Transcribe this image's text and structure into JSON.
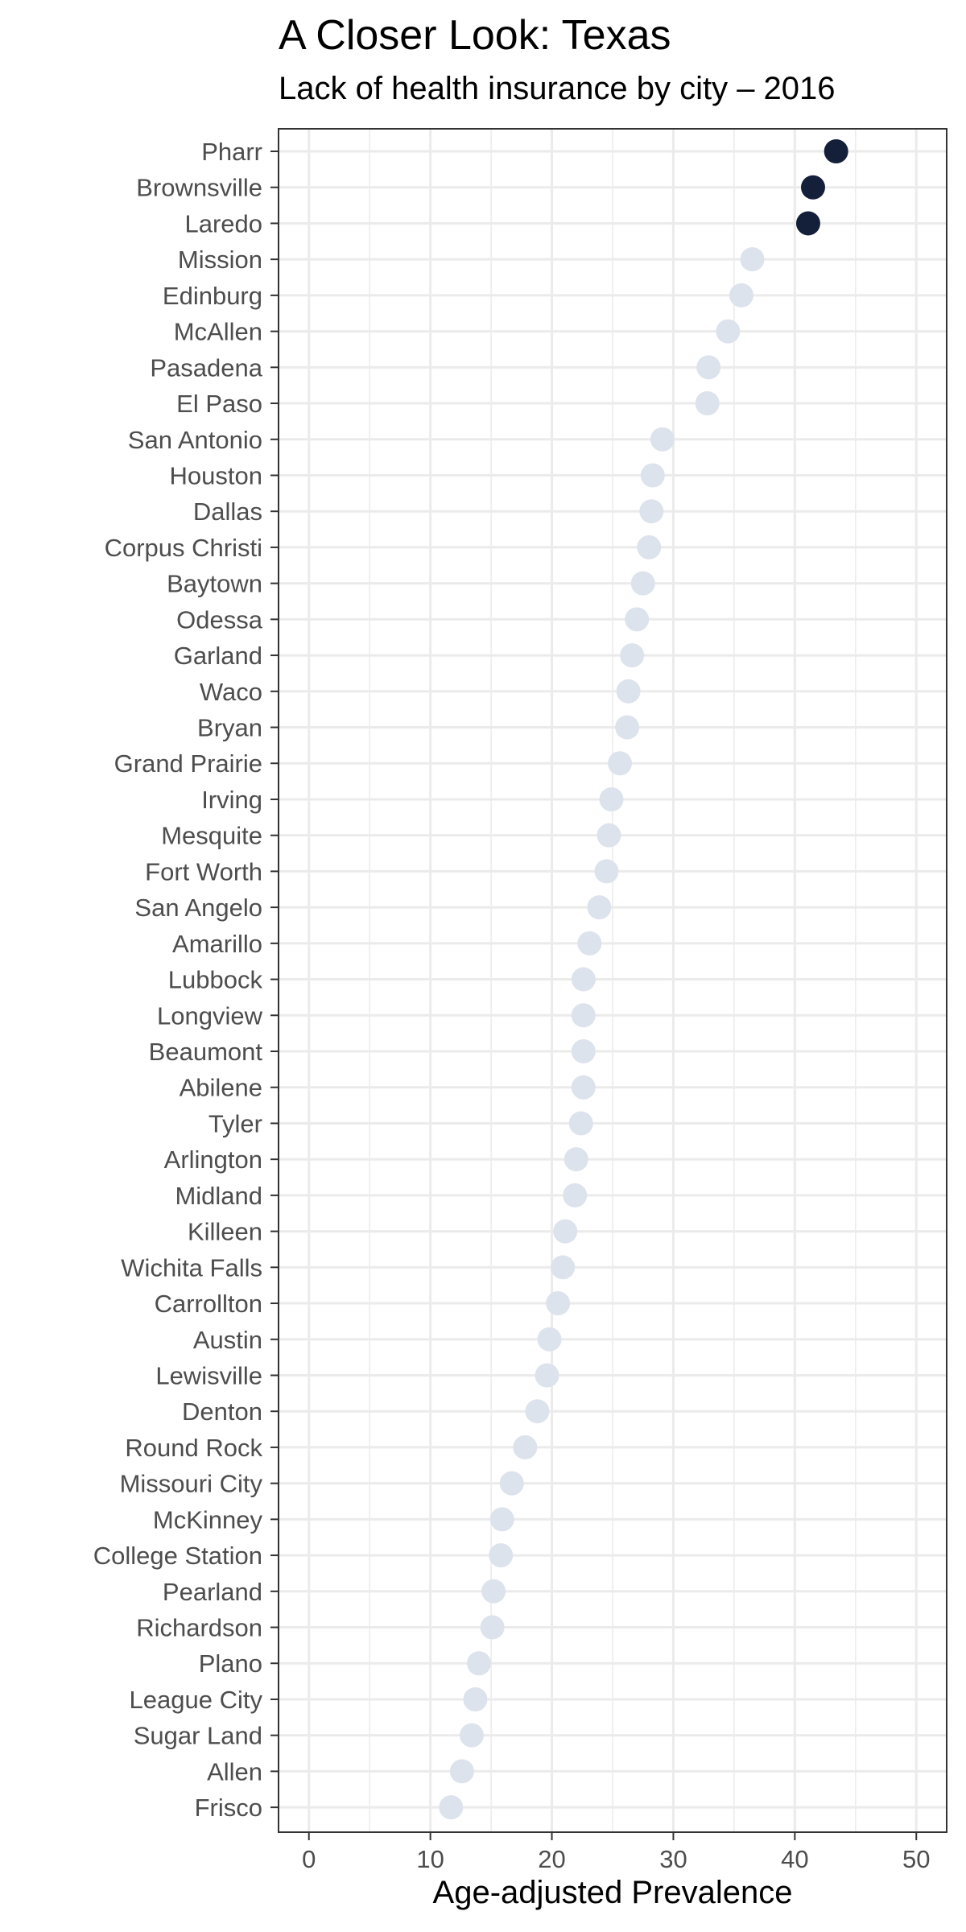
{
  "chart_data": {
    "type": "scatter",
    "title": "A Closer Look: Texas",
    "subtitle": "Lack of health insurance by city – 2016",
    "xlabel": "Age-adjusted Prevalence",
    "ylabel": "",
    "xlim": [
      -2.5,
      52.5
    ],
    "xticks": [
      0,
      10,
      20,
      30,
      40,
      50
    ],
    "grid": true,
    "legend": "none",
    "colors": {
      "highlight": "#14203a",
      "default": "#dde3ec",
      "grid": "#ebebeb",
      "panel_border": "#333333"
    },
    "points": [
      {
        "city": "Pharr",
        "value": 43.4,
        "highlight": true
      },
      {
        "city": "Brownsville",
        "value": 41.5,
        "highlight": true
      },
      {
        "city": "Laredo",
        "value": 41.1,
        "highlight": true
      },
      {
        "city": "Mission",
        "value": 36.5,
        "highlight": false
      },
      {
        "city": "Edinburg",
        "value": 35.6,
        "highlight": false
      },
      {
        "city": "McAllen",
        "value": 34.5,
        "highlight": false
      },
      {
        "city": "Pasadena",
        "value": 32.9,
        "highlight": false
      },
      {
        "city": "El Paso",
        "value": 32.8,
        "highlight": false
      },
      {
        "city": "San Antonio",
        "value": 29.1,
        "highlight": false
      },
      {
        "city": "Houston",
        "value": 28.3,
        "highlight": false
      },
      {
        "city": "Dallas",
        "value": 28.2,
        "highlight": false
      },
      {
        "city": "Corpus Christi",
        "value": 28.0,
        "highlight": false
      },
      {
        "city": "Baytown",
        "value": 27.5,
        "highlight": false
      },
      {
        "city": "Odessa",
        "value": 27.0,
        "highlight": false
      },
      {
        "city": "Garland",
        "value": 26.6,
        "highlight": false
      },
      {
        "city": "Waco",
        "value": 26.3,
        "highlight": false
      },
      {
        "city": "Bryan",
        "value": 26.2,
        "highlight": false
      },
      {
        "city": "Grand Prairie",
        "value": 25.6,
        "highlight": false
      },
      {
        "city": "Irving",
        "value": 24.9,
        "highlight": false
      },
      {
        "city": "Mesquite",
        "value": 24.7,
        "highlight": false
      },
      {
        "city": "Fort Worth",
        "value": 24.5,
        "highlight": false
      },
      {
        "city": "San Angelo",
        "value": 23.9,
        "highlight": false
      },
      {
        "city": "Amarillo",
        "value": 23.1,
        "highlight": false
      },
      {
        "city": "Lubbock",
        "value": 22.6,
        "highlight": false
      },
      {
        "city": "Longview",
        "value": 22.6,
        "highlight": false
      },
      {
        "city": "Beaumont",
        "value": 22.6,
        "highlight": false
      },
      {
        "city": "Abilene",
        "value": 22.6,
        "highlight": false
      },
      {
        "city": "Tyler",
        "value": 22.4,
        "highlight": false
      },
      {
        "city": "Arlington",
        "value": 22.0,
        "highlight": false
      },
      {
        "city": "Midland",
        "value": 21.9,
        "highlight": false
      },
      {
        "city": "Killeen",
        "value": 21.1,
        "highlight": false
      },
      {
        "city": "Wichita Falls",
        "value": 20.9,
        "highlight": false
      },
      {
        "city": "Carrollton",
        "value": 20.5,
        "highlight": false
      },
      {
        "city": "Austin",
        "value": 19.8,
        "highlight": false
      },
      {
        "city": "Lewisville",
        "value": 19.6,
        "highlight": false
      },
      {
        "city": "Denton",
        "value": 18.8,
        "highlight": false
      },
      {
        "city": "Round Rock",
        "value": 17.8,
        "highlight": false
      },
      {
        "city": "Missouri City",
        "value": 16.7,
        "highlight": false
      },
      {
        "city": "McKinney",
        "value": 15.9,
        "highlight": false
      },
      {
        "city": "College Station",
        "value": 15.8,
        "highlight": false
      },
      {
        "city": "Pearland",
        "value": 15.2,
        "highlight": false
      },
      {
        "city": "Richardson",
        "value": 15.1,
        "highlight": false
      },
      {
        "city": "Plano",
        "value": 14.0,
        "highlight": false
      },
      {
        "city": "League City",
        "value": 13.7,
        "highlight": false
      },
      {
        "city": "Sugar Land",
        "value": 13.4,
        "highlight": false
      },
      {
        "city": "Allen",
        "value": 12.6,
        "highlight": false
      },
      {
        "city": "Frisco",
        "value": 11.7,
        "highlight": false
      }
    ]
  }
}
